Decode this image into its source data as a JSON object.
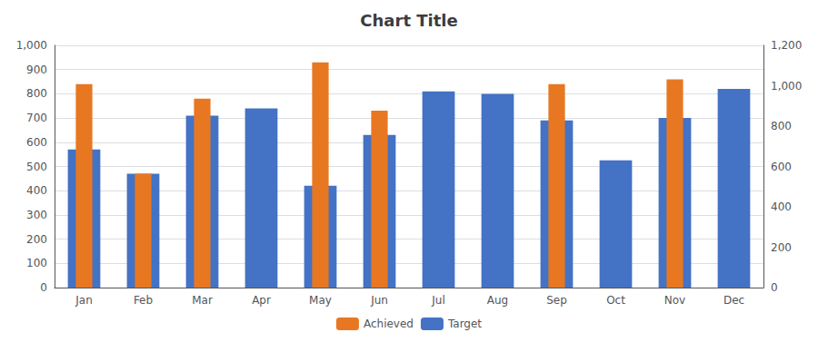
{
  "chart_data": {
    "type": "bar",
    "title": "Chart Title",
    "categories": [
      "Jan",
      "Feb",
      "Mar",
      "Apr",
      "May",
      "Jun",
      "Jul",
      "Aug",
      "Sep",
      "Oct",
      "Nov",
      "Dec"
    ],
    "series": [
      {
        "name": "Achieved",
        "color": "#E87722",
        "values": [
          840,
          470,
          780,
          null,
          930,
          730,
          null,
          null,
          840,
          null,
          860,
          null
        ]
      },
      {
        "name": "Target",
        "color": "#4472C4",
        "values": [
          570,
          470,
          710,
          740,
          420,
          630,
          810,
          800,
          690,
          525,
          700,
          820
        ]
      }
    ],
    "ylim": [
      0,
      1000
    ],
    "yticks": [
      0,
      100,
      200,
      300,
      400,
      500,
      600,
      700,
      800,
      900,
      1000
    ],
    "y2lim": [
      0,
      1200
    ],
    "y2ticks": [
      0,
      200,
      400,
      600,
      800,
      1000,
      1200
    ],
    "grid": true,
    "legend": "bottom"
  }
}
